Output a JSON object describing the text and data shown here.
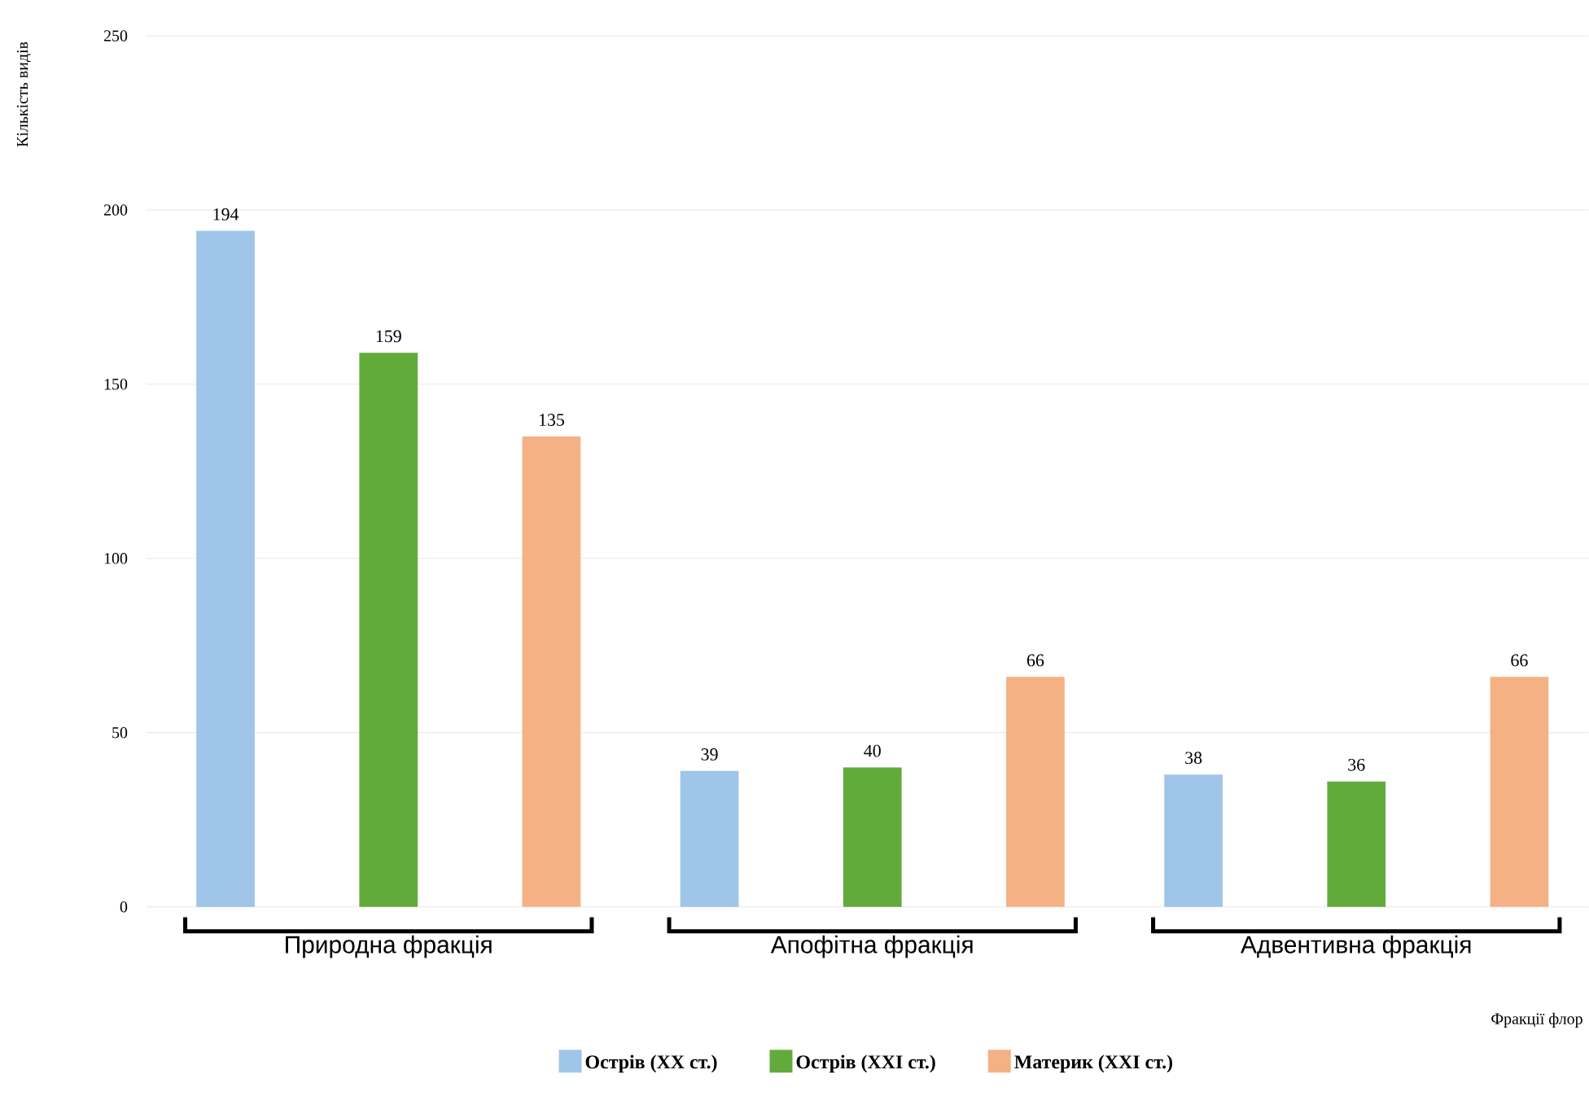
{
  "chart_data": {
    "type": "bar",
    "xlabel": "Фракції флор",
    "ylabel": "Кількість видів",
    "categories": [
      "Природна фракція",
      "Апофітна фракція",
      "Адвентивна фракція"
    ],
    "series": [
      {
        "name": "Острів (ХХ ст.)",
        "color": "#9fc5e8",
        "values": [
          194,
          39,
          38
        ]
      },
      {
        "name": "Острів (ХХІ ст.)",
        "color": "#62ab3b",
        "values": [
          159,
          40,
          36
        ]
      },
      {
        "name": "Материк (ХХІ ст.)",
        "color": "#f4b183",
        "values": [
          135,
          66,
          66
        ]
      }
    ],
    "ylim": [
      0,
      250
    ],
    "yticks": [
      0,
      50,
      100,
      150,
      200,
      250
    ],
    "grid": "y",
    "legend": "bottom",
    "data_labels": true
  }
}
